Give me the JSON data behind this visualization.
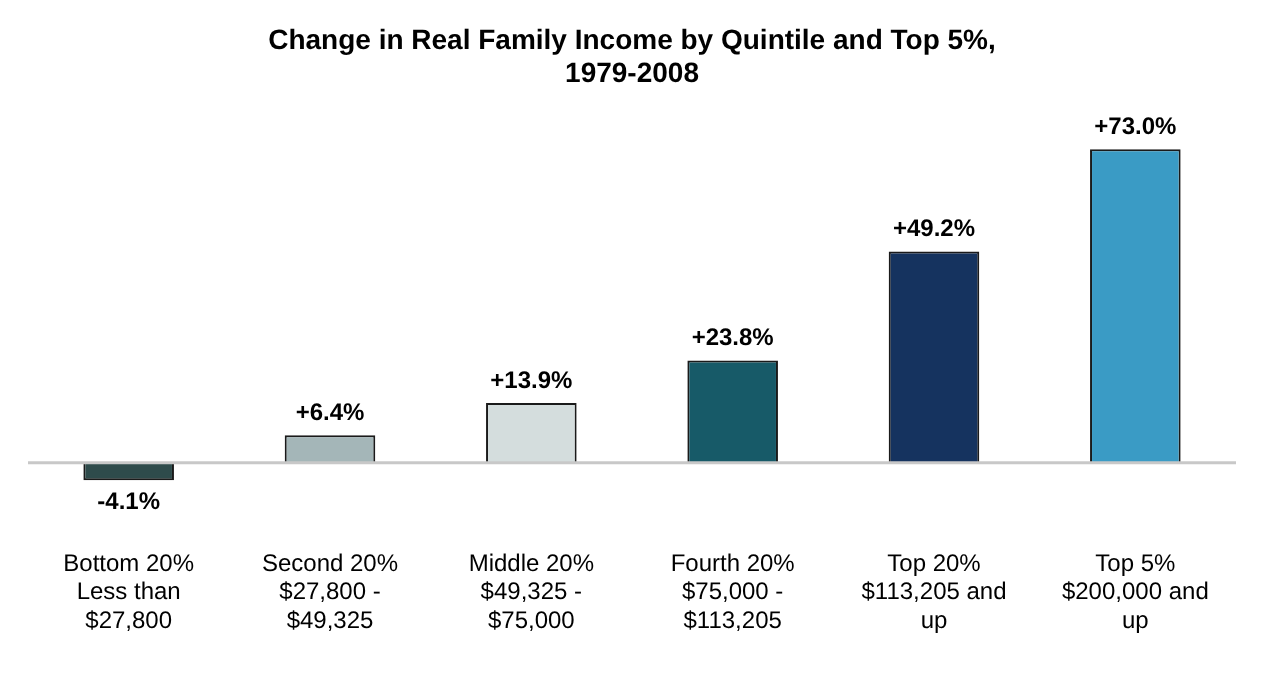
{
  "chart_data": {
    "type": "bar",
    "title": "Change in Real Family Income by Quintile and Top 5%,\n1979-2008",
    "categories": [
      "Bottom 20%\nLess than\n$27,800",
      "Second 20%\n$27,800 -\n$49,325",
      "Middle 20%\n$49,325 -\n$75,000",
      "Fourth 20%\n$75,000 -\n$113,205",
      "Top 20%\n$113,205 and\nup",
      "Top 5%\n$200,000 and\nup"
    ],
    "values": [
      -4.1,
      6.4,
      13.9,
      23.8,
      49.2,
      73.0
    ],
    "value_labels": [
      "-4.1%",
      "+6.4%",
      "+13.9%",
      "+23.8%",
      "+49.2%",
      "+73.0%"
    ],
    "colors": [
      "#2e4b4b",
      "#a4b6b8",
      "#d4dddd",
      "#175a68",
      "#15335f",
      "#3a9bc5"
    ],
    "grid": false,
    "legend": false
  }
}
